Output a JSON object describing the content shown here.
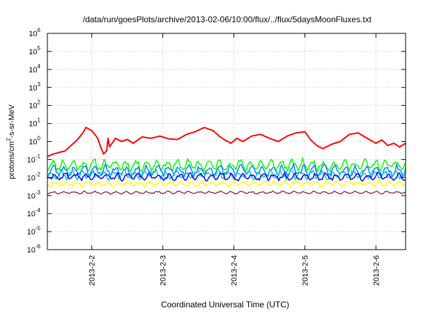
{
  "chart_data": {
    "type": "line",
    "title": "/data/run/goesPlots/archive/2013-02-06/10:00/flux/../flux/5daysMoonFluxes.txt",
    "xlabel": "Coordinated Universal Time (UTC)",
    "ylabel_parts": [
      "protons/cm",
      "2",
      "-s-sr-MeV"
    ],
    "y_scale": "log",
    "ylim": [
      1e-06,
      1000000.0
    ],
    "y_ticks": [
      {
        "value": 1e-06,
        "base": "10",
        "exp": "-6"
      },
      {
        "value": 1e-05,
        "base": "10",
        "exp": "-5"
      },
      {
        "value": 0.0001,
        "base": "10",
        "exp": "-4"
      },
      {
        "value": 0.001,
        "base": "10",
        "exp": "-3"
      },
      {
        "value": 0.01,
        "base": "10",
        "exp": "-2"
      },
      {
        "value": 0.1,
        "base": "10",
        "exp": "-1"
      },
      {
        "value": 1,
        "base": "10",
        "exp": "0"
      },
      {
        "value": 10,
        "base": "10",
        "exp": "1"
      },
      {
        "value": 100,
        "base": "10",
        "exp": "2"
      },
      {
        "value": 1000,
        "base": "10",
        "exp": "3"
      },
      {
        "value": 10000,
        "base": "10",
        "exp": "4"
      },
      {
        "value": 100000,
        "base": "10",
        "exp": "5"
      },
      {
        "value": 1000000,
        "base": "10",
        "exp": "6"
      }
    ],
    "x_unit": "day",
    "xlim": [
      "2013-02-01T09:00",
      "2013-02-06T10:00"
    ],
    "x_ticks": [
      {
        "value": "2013-02-02T00:00",
        "label": "2013-2-2"
      },
      {
        "value": "2013-02-03T00:00",
        "label": "2013-2-3"
      },
      {
        "value": "2013-02-04T00:00",
        "label": "2013-2-4"
      },
      {
        "value": "2013-02-05T00:00",
        "label": "2013-2-5"
      },
      {
        "value": "2013-02-06T00:00",
        "label": "2013-2-6"
      }
    ],
    "grid": true,
    "series": [
      {
        "color": "#ff0000",
        "width": 2,
        "x": [
          "2013-02-01T09:00",
          "2013-02-01T11:00",
          "2013-02-01T13:00",
          "2013-02-01T15:00",
          "2013-02-01T17:00",
          "2013-02-01T19:00",
          "2013-02-01T21:00",
          "2013-02-01T22:00",
          "2013-02-02T00:00",
          "2013-02-02T01:00",
          "2013-02-02T02:00",
          "2013-02-02T03:00",
          "2013-02-02T04:00",
          "2013-02-02T05:00",
          "2013-02-02T05:30",
          "2013-02-02T06:00",
          "2013-02-02T08:00",
          "2013-02-02T10:00",
          "2013-02-02T12:00",
          "2013-02-02T14:00",
          "2013-02-02T17:00",
          "2013-02-02T20:00",
          "2013-02-02T23:00",
          "2013-02-03T02:00",
          "2013-02-03T05:00",
          "2013-02-03T08:00",
          "2013-02-03T11:00",
          "2013-02-03T14:00",
          "2013-02-03T17:00",
          "2013-02-03T19:00",
          "2013-02-03T21:00",
          "2013-02-03T23:00",
          "2013-02-04T01:00",
          "2013-02-04T03:00",
          "2013-02-04T06:00",
          "2013-02-04T09:00",
          "2013-02-04T12:00",
          "2013-02-04T15:00",
          "2013-02-04T18:00",
          "2013-02-04T21:00",
          "2013-02-05T00:00",
          "2013-02-05T02:00",
          "2013-02-05T04:00",
          "2013-02-05T06:00",
          "2013-02-05T09:00",
          "2013-02-05T12:00",
          "2013-02-05T15:00",
          "2013-02-05T18:00",
          "2013-02-05T21:00",
          "2013-02-06T00:00",
          "2013-02-06T02:00",
          "2013-02-06T04:00",
          "2013-02-06T06:00",
          "2013-02-06T08:00",
          "2013-02-06T10:00"
        ],
        "y": [
          0.15,
          0.2,
          0.25,
          0.3,
          0.6,
          1.2,
          3,
          6,
          4,
          2.5,
          1.5,
          0.5,
          0.2,
          0.3,
          1.5,
          0.5,
          1.5,
          1,
          1.3,
          0.8,
          1.8,
          1.5,
          2,
          1.4,
          1.3,
          2.5,
          3.5,
          6,
          4,
          2,
          1.2,
          0.8,
          1.5,
          1,
          2,
          2.5,
          1.5,
          1,
          2,
          3,
          3.5,
          1.2,
          0.6,
          0.4,
          0.7,
          1,
          2.5,
          3,
          1.5,
          0.8,
          1.2,
          0.6,
          0.8,
          0.5,
          0.8
        ]
      },
      {
        "color": "#00ff00",
        "width": 1.5,
        "band": [
          0.02,
          0.12
        ],
        "seed": 11
      },
      {
        "color": "#0080ff",
        "width": 1.5,
        "band": [
          0.01,
          0.06
        ],
        "seed": 23
      },
      {
        "color": "#00c8c8",
        "width": 1.5,
        "band": [
          0.007,
          0.03
        ],
        "seed": 37
      },
      {
        "color": "#0000ff",
        "width": 1.5,
        "band": [
          0.006,
          0.02
        ],
        "seed": 41
      },
      {
        "color": "#ffff00",
        "width": 1.5,
        "band": [
          0.003,
          0.007
        ],
        "seed": 53
      },
      {
        "color": "#8b3a62",
        "width": 1.5,
        "band": [
          0.0012,
          0.0018
        ],
        "seed": 67
      }
    ]
  }
}
